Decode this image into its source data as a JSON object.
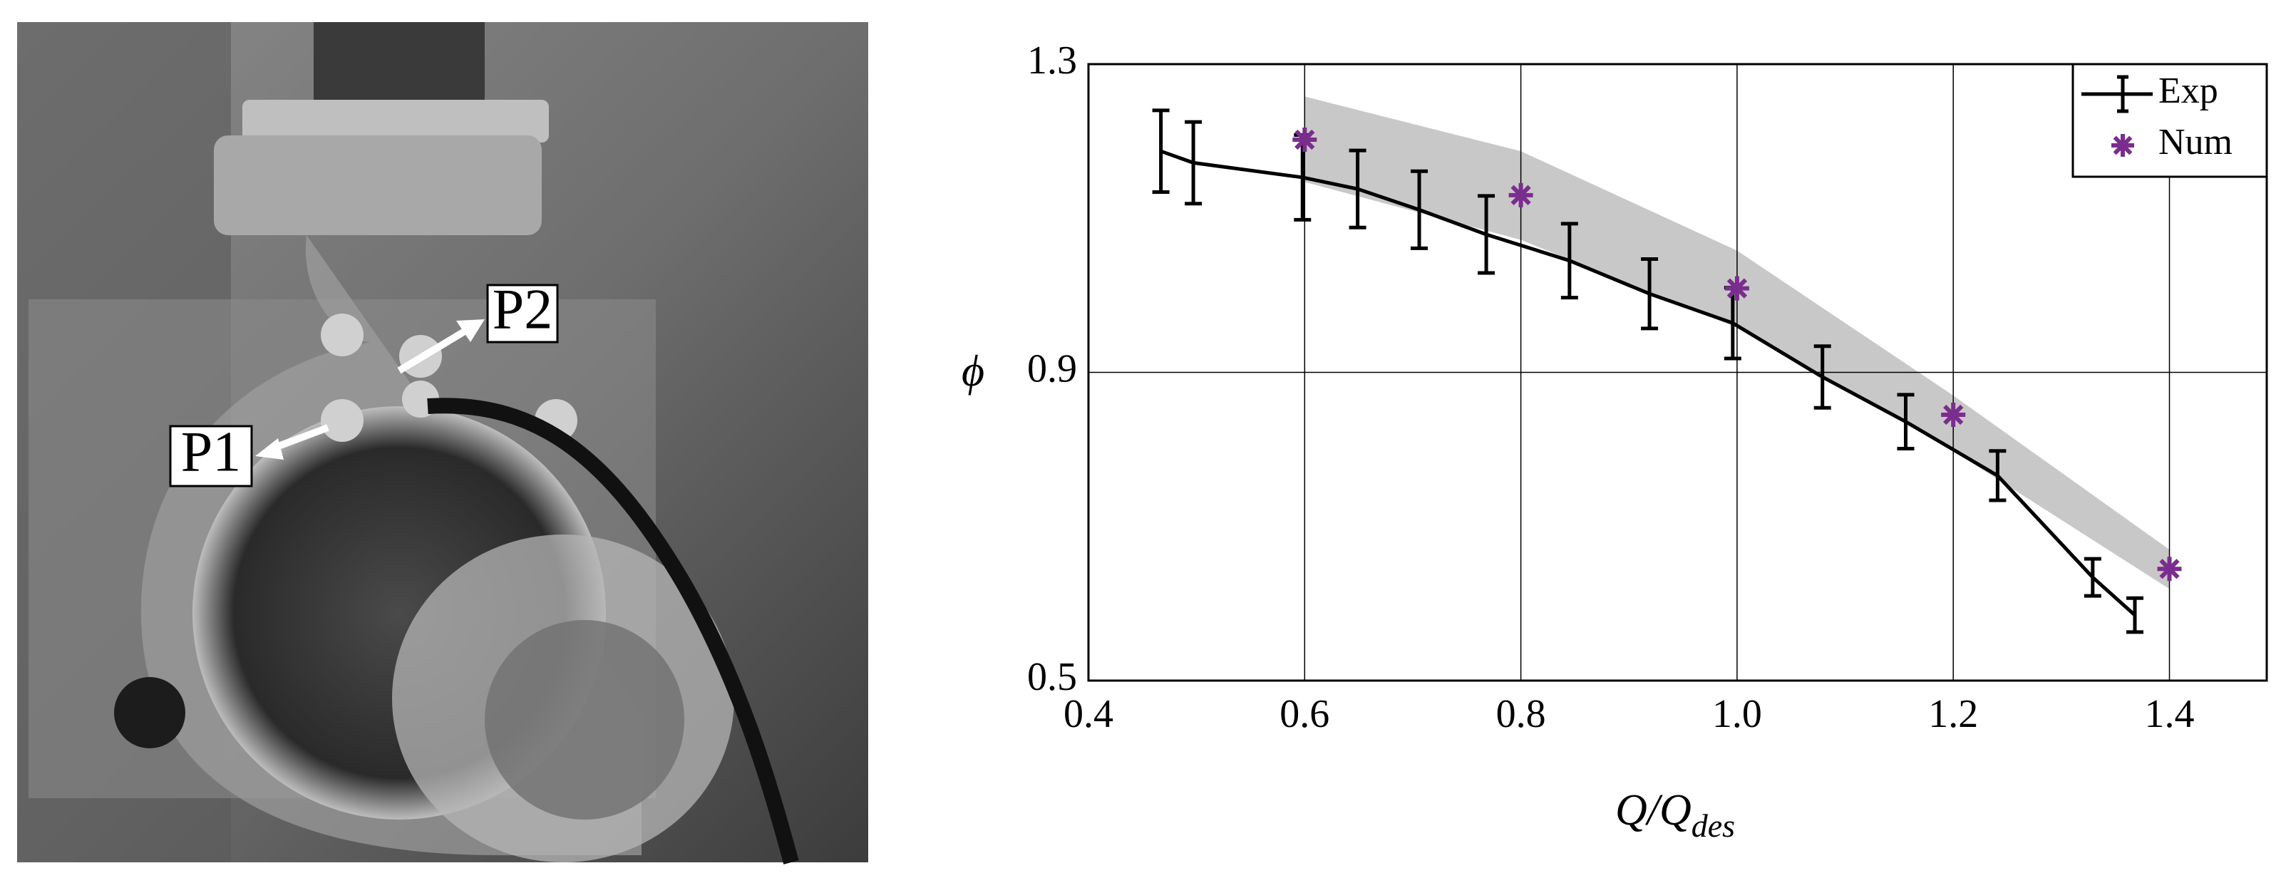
{
  "photo": {
    "labels": [
      "P1",
      "P2"
    ]
  },
  "chart_data": {
    "type": "line",
    "ylabel": "ϕ",
    "xlabel": {
      "main": "Q/Q",
      "sub": "des"
    },
    "xlim": [
      0.4,
      1.49
    ],
    "ylim": [
      0.5,
      1.3
    ],
    "xticks": [
      0.4,
      0.6,
      0.8,
      {
        "value": 1,
        "label": "1.0"
      },
      1.2,
      1.4
    ],
    "yticks": [
      0.5,
      0.9,
      1.3
    ],
    "grid": true,
    "legend": "upper right",
    "band": {
      "color": "#c8c8c8",
      "x": [
        0.6,
        0.8,
        1.0,
        1.2,
        1.4
      ],
      "upper": [
        1.258,
        1.187,
        1.058,
        0.87,
        0.67
      ],
      "lower": [
        1.147,
        1.072,
        0.958,
        0.798,
        0.619
      ]
    },
    "series": [
      {
        "name": "Exp",
        "color": "#000000",
        "style": "errorbar",
        "x": [
          0.467,
          0.497,
          0.598,
          0.649,
          0.706,
          0.768,
          0.845,
          0.919,
          0.996,
          1.079,
          1.156,
          1.241,
          1.329,
          1.368
        ],
        "values": [
          1.187,
          1.172,
          1.153,
          1.138,
          1.111,
          1.079,
          1.045,
          1.002,
          0.964,
          0.894,
          0.836,
          0.766,
          0.634,
          0.585
        ],
        "errors": [
          0.053,
          0.053,
          0.055,
          0.05,
          0.05,
          0.05,
          0.048,
          0.045,
          0.046,
          0.04,
          0.035,
          0.032,
          0.024,
          0.022
        ]
      },
      {
        "name": "Num",
        "color": "#7b2d8e",
        "style": "scatter",
        "x": [
          0.6,
          0.8,
          1.0,
          1.2,
          1.4
        ],
        "values": [
          1.202,
          1.13,
          1.009,
          0.845,
          0.645
        ]
      }
    ]
  }
}
